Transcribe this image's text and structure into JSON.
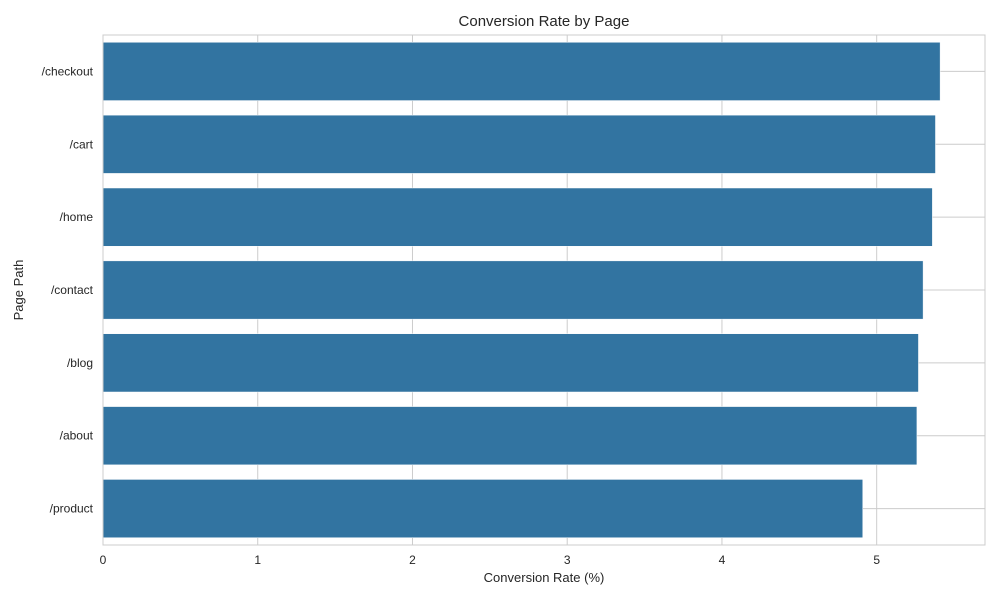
{
  "chart_data": {
    "type": "bar",
    "orientation": "horizontal",
    "title": "Conversion Rate by Page",
    "xlabel": "Conversion Rate (%)",
    "ylabel": "Page Path",
    "categories": [
      "/checkout",
      "/cart",
      "/home",
      "/contact",
      "/blog",
      "/about",
      "/product"
    ],
    "values": [
      5.41,
      5.38,
      5.36,
      5.3,
      5.27,
      5.26,
      4.91
    ],
    "xlim": [
      0,
      5.7
    ],
    "xticks": [
      0,
      1,
      2,
      3,
      4,
      5
    ],
    "grid": true,
    "bar_color": "#3274a1",
    "grid_color": "#cccccc",
    "axis_color": "#cccccc"
  }
}
